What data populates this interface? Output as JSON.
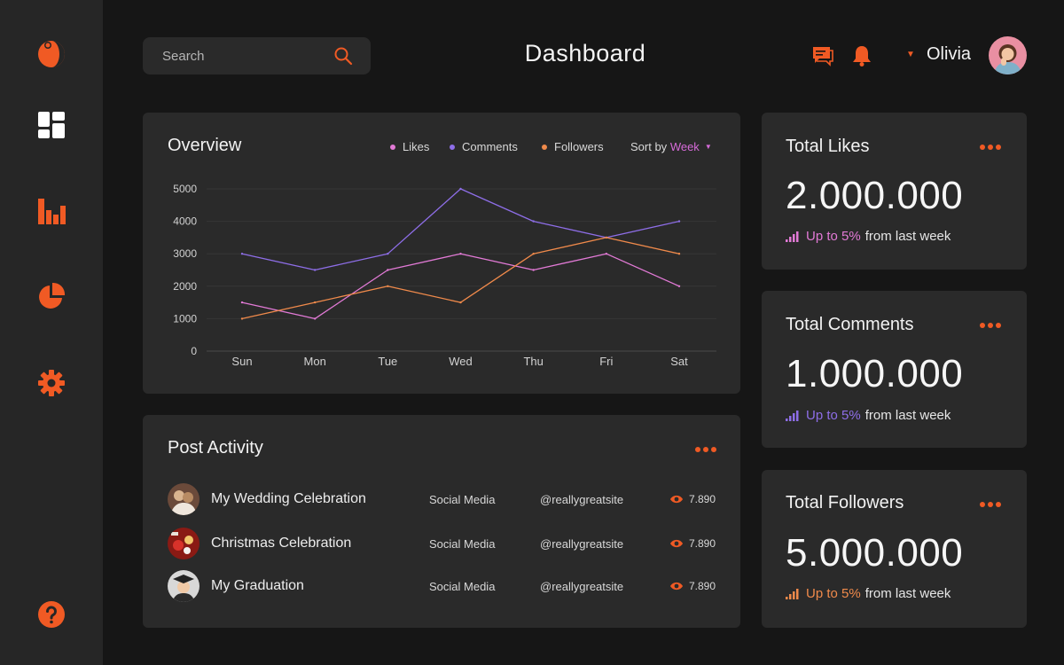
{
  "sidebar": {
    "items": [
      {
        "name": "logo",
        "icon": "logo-icon"
      },
      {
        "name": "dashboard",
        "icon": "grid-icon"
      },
      {
        "name": "analytics",
        "icon": "bar-chart-icon"
      },
      {
        "name": "reports",
        "icon": "pie-chart-icon"
      },
      {
        "name": "settings",
        "icon": "gear-icon"
      },
      {
        "name": "help",
        "icon": "help-icon"
      }
    ],
    "accent_color": "#f05a24"
  },
  "header": {
    "search_placeholder": "Search",
    "title": "Dashboard",
    "user_name": "Olivia"
  },
  "overview": {
    "title": "Overview",
    "legend": [
      "Likes",
      "Comments",
      "Followers"
    ],
    "sort_label": "Sort by",
    "sort_value": "Week"
  },
  "chart_data": {
    "type": "line",
    "categories": [
      "Sun",
      "Mon",
      "Tue",
      "Wed",
      "Thu",
      "Fri",
      "Sat"
    ],
    "ylim": [
      0,
      5000
    ],
    "yticks": [
      "5000",
      "4000",
      "3000",
      "2000",
      "1000",
      "0"
    ],
    "grid": true,
    "legend_position": "top-right",
    "series": [
      {
        "name": "Likes",
        "color": "#e27ad6",
        "values": [
          1500,
          1000,
          2500,
          3000,
          2500,
          3000,
          2000
        ]
      },
      {
        "name": "Comments",
        "color": "#8e6ee8",
        "values": [
          3000,
          2500,
          3000,
          5000,
          4000,
          3500,
          4000
        ]
      },
      {
        "name": "Followers",
        "color": "#f08a4b",
        "values": [
          1000,
          1500,
          2000,
          1500,
          3000,
          3500,
          3000
        ]
      }
    ]
  },
  "post_activity": {
    "title": "Post Activity",
    "rows": [
      {
        "title": "My Wedding Celebration",
        "category": "Social Media",
        "handle": "@reallygreatsite",
        "views": "7.890"
      },
      {
        "title": "Christmas Celebration",
        "category": "Social Media",
        "handle": "@reallygreatsite",
        "views": "7.890"
      },
      {
        "title": "My Graduation",
        "category": "Social Media",
        "handle": "@reallygreatsite",
        "views": "7.890"
      }
    ]
  },
  "stats": [
    {
      "title": "Total Likes",
      "value": "2.000.000",
      "trend_up": "Up to 5%",
      "trend_rest": "from last week",
      "color": "#e27ad6"
    },
    {
      "title": "Total Comments",
      "value": "1.000.000",
      "trend_up": "Up to 5%",
      "trend_rest": "from last week",
      "color": "#8e6ee8"
    },
    {
      "title": "Total Followers",
      "value": "5.000.000",
      "trend_up": "Up to 5%",
      "trend_rest": "from last week",
      "color": "#f08a4b"
    }
  ]
}
